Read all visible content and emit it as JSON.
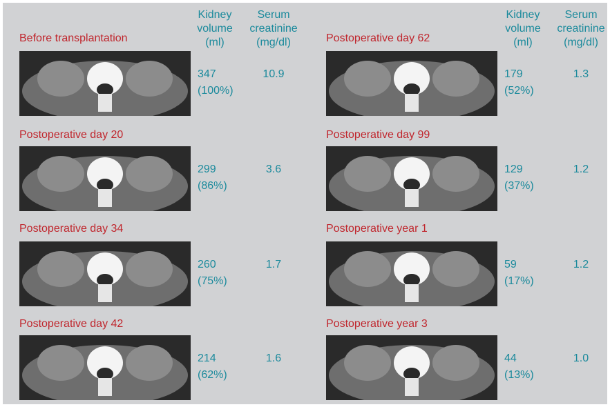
{
  "headers": {
    "volume": [
      "Kidney",
      "volume",
      "(ml)"
    ],
    "creatinine": [
      "Serum",
      "creatinine",
      "(mg/dl)"
    ]
  },
  "left": [
    {
      "label": "Before transplantation",
      "volume": "347",
      "percent": "(100%)",
      "creatinine": "10.9"
    },
    {
      "label": "Postoperative day 20",
      "volume": "299",
      "percent": "(86%)",
      "creatinine": "3.6"
    },
    {
      "label": "Postoperative day 34",
      "volume": "260",
      "percent": "(75%)",
      "creatinine": "1.7"
    },
    {
      "label": "Postoperative day 42",
      "volume": "214",
      "percent": "(62%)",
      "creatinine": "1.6"
    }
  ],
  "right": [
    {
      "label": "Postoperative day 62",
      "volume": "179",
      "percent": "(52%)",
      "creatinine": "1.3"
    },
    {
      "label": "Postoperative day 99",
      "volume": "129",
      "percent": "(37%)",
      "creatinine": "1.2"
    },
    {
      "label": "Postoperative year 1",
      "volume": "59",
      "percent": "(17%)",
      "creatinine": "1.2"
    },
    {
      "label": "Postoperative year 3",
      "volume": "44",
      "percent": "(13%)",
      "creatinine": "1.0"
    }
  ],
  "colors": {
    "label": "#c0262d",
    "value": "#1b8a9c",
    "background": "#d1d2d4"
  }
}
